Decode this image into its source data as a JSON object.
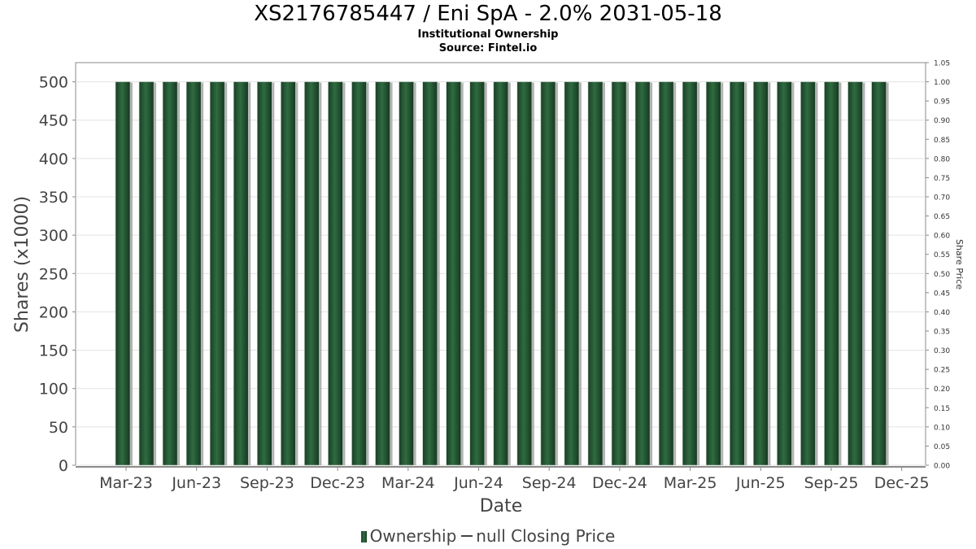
{
  "chart_data": {
    "type": "bar",
    "title": "XS2176785447 / Eni SpA - 2.0% 2031-05-18",
    "subtitle": "Institutional Ownership",
    "source": "Source: Fintel.io",
    "xlabel": "Date",
    "ylabel": "Shares (x1000)",
    "y2label": "Share Price",
    "ylim": [
      0,
      525
    ],
    "y2lim": [
      0,
      1.05
    ],
    "y_ticks": [
      0,
      50,
      100,
      150,
      200,
      250,
      300,
      350,
      400,
      450,
      500
    ],
    "y2_ticks": [
      "0.00",
      "0.05",
      "0.10",
      "0.15",
      "0.20",
      "0.25",
      "0.30",
      "0.35",
      "0.40",
      "0.45",
      "0.50",
      "0.55",
      "0.60",
      "0.65",
      "0.70",
      "0.75",
      "0.80",
      "0.85",
      "0.90",
      "0.95",
      "1.00",
      "1.05"
    ],
    "x_ticks": [
      "Mar-23",
      "Jun-23",
      "Sep-23",
      "Dec-23",
      "Mar-24",
      "Jun-24",
      "Sep-24",
      "Dec-24",
      "Mar-25",
      "Jun-25",
      "Sep-25",
      "Dec-25"
    ],
    "grid": true,
    "legend_position": "bottom",
    "series": [
      {
        "name": "Ownership",
        "values": [
          500,
          500,
          500,
          500,
          500,
          500,
          500,
          500,
          500,
          500,
          500,
          500,
          500,
          500,
          500,
          500,
          500,
          500,
          500,
          500,
          500,
          500,
          500,
          500,
          500,
          500,
          500,
          500,
          500,
          500,
          500,
          500,
          500
        ]
      },
      {
        "name": "null Closing Price",
        "values": []
      }
    ],
    "colors": {
      "bar": "#2a5a38",
      "bar_dark": "#183a22",
      "shadow": "#9a9a9a",
      "grid": "#e3e3e3",
      "axis": "#888888"
    }
  }
}
